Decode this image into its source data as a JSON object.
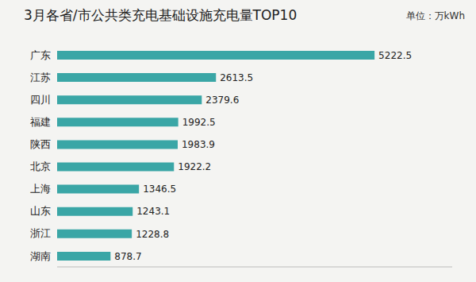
{
  "chart_data": {
    "type": "bar",
    "title": "3月各省/市公共类充电基础设施充电量TOP10",
    "subtitle": "单位：万kWh",
    "categories": [
      "广东",
      "江苏",
      "四川",
      "福建",
      "陕西",
      "北京",
      "上海",
      "山东",
      "浙江",
      "湖南"
    ],
    "values": [
      5222.5,
      2613.5,
      2379.6,
      1992.5,
      1983.9,
      1922.2,
      1346.5,
      1243.1,
      1228.8,
      878.7
    ],
    "color": "#3aa6a6",
    "orientation": "horizontal",
    "xlim": [
      0,
      6500
    ],
    "data_labels": true,
    "tick_labels": "y",
    "grid": false
  }
}
